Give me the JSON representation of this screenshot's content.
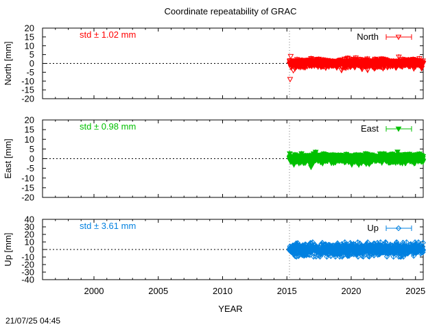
{
  "title": "Coordinate repeatability of GRAC",
  "timestamp": "21/07/25 04:45",
  "xlabel": "YEAR",
  "chart_data": [
    {
      "type": "scatter",
      "ylabel": "North [mm]",
      "legend": "North",
      "legend_position": "top-right",
      "std_label": "std ± 1.02 mm",
      "color": "#ff0000",
      "marker": "triangle-down-open",
      "xlim": [
        1996,
        2025.6
      ],
      "ylim": [
        -20,
        20
      ],
      "yticks": [
        20,
        15,
        10,
        5,
        0,
        -5,
        -10,
        -15,
        -20
      ],
      "xticks": [
        2000,
        2005,
        2010,
        2015,
        2020,
        2025
      ],
      "vertical_line_x": 2015.2,
      "zero_line": true,
      "series": [
        {
          "name": "North",
          "x_start": 2015.2,
          "x_end": 2025.6,
          "mean": 0,
          "std": 1.02,
          "outliers": [
            [
              2015.25,
              -9
            ],
            [
              2015.3,
              4
            ],
            [
              2015.5,
              -4
            ]
          ]
        }
      ]
    },
    {
      "type": "scatter",
      "ylabel": "East [mm]",
      "legend": "East",
      "legend_position": "top-right",
      "std_label": "std ± 0.98 mm",
      "color": "#00c000",
      "marker": "triangle-down-filled",
      "xlim": [
        1996,
        2025.6
      ],
      "ylim": [
        -20,
        20
      ],
      "yticks": [
        20,
        15,
        10,
        5,
        0,
        -5,
        -10,
        -15,
        -20
      ],
      "xticks": [
        2000,
        2005,
        2010,
        2015,
        2020,
        2025
      ],
      "vertical_line_x": 2015.2,
      "zero_line": true,
      "series": [
        {
          "name": "East",
          "x_start": 2015.2,
          "x_end": 2025.6,
          "mean": 0,
          "std": 0.98,
          "outliers": [
            [
              2023.6,
              3.5
            ]
          ]
        }
      ]
    },
    {
      "type": "scatter",
      "ylabel": "Up [mm]",
      "legend": "Up",
      "legend_position": "top-right",
      "std_label": "std ± 3.61 mm",
      "color": "#0080e0",
      "marker": "diamond-open",
      "xlim": [
        1996,
        2025.6
      ],
      "ylim": [
        -40,
        40
      ],
      "yticks": [
        40,
        30,
        20,
        10,
        0,
        -10,
        -20,
        -30,
        -40
      ],
      "xticks": [
        2000,
        2005,
        2010,
        2015,
        2020,
        2025
      ],
      "xticklabels": [
        "2000",
        "2005",
        "2010",
        "2015",
        "2020",
        "2025"
      ],
      "vertical_line_x": 2015.2,
      "zero_line": true,
      "series": [
        {
          "name": "Up",
          "x_start": 2015.2,
          "x_end": 2025.6,
          "mean": 0,
          "std": 3.61,
          "outliers": []
        }
      ]
    }
  ]
}
